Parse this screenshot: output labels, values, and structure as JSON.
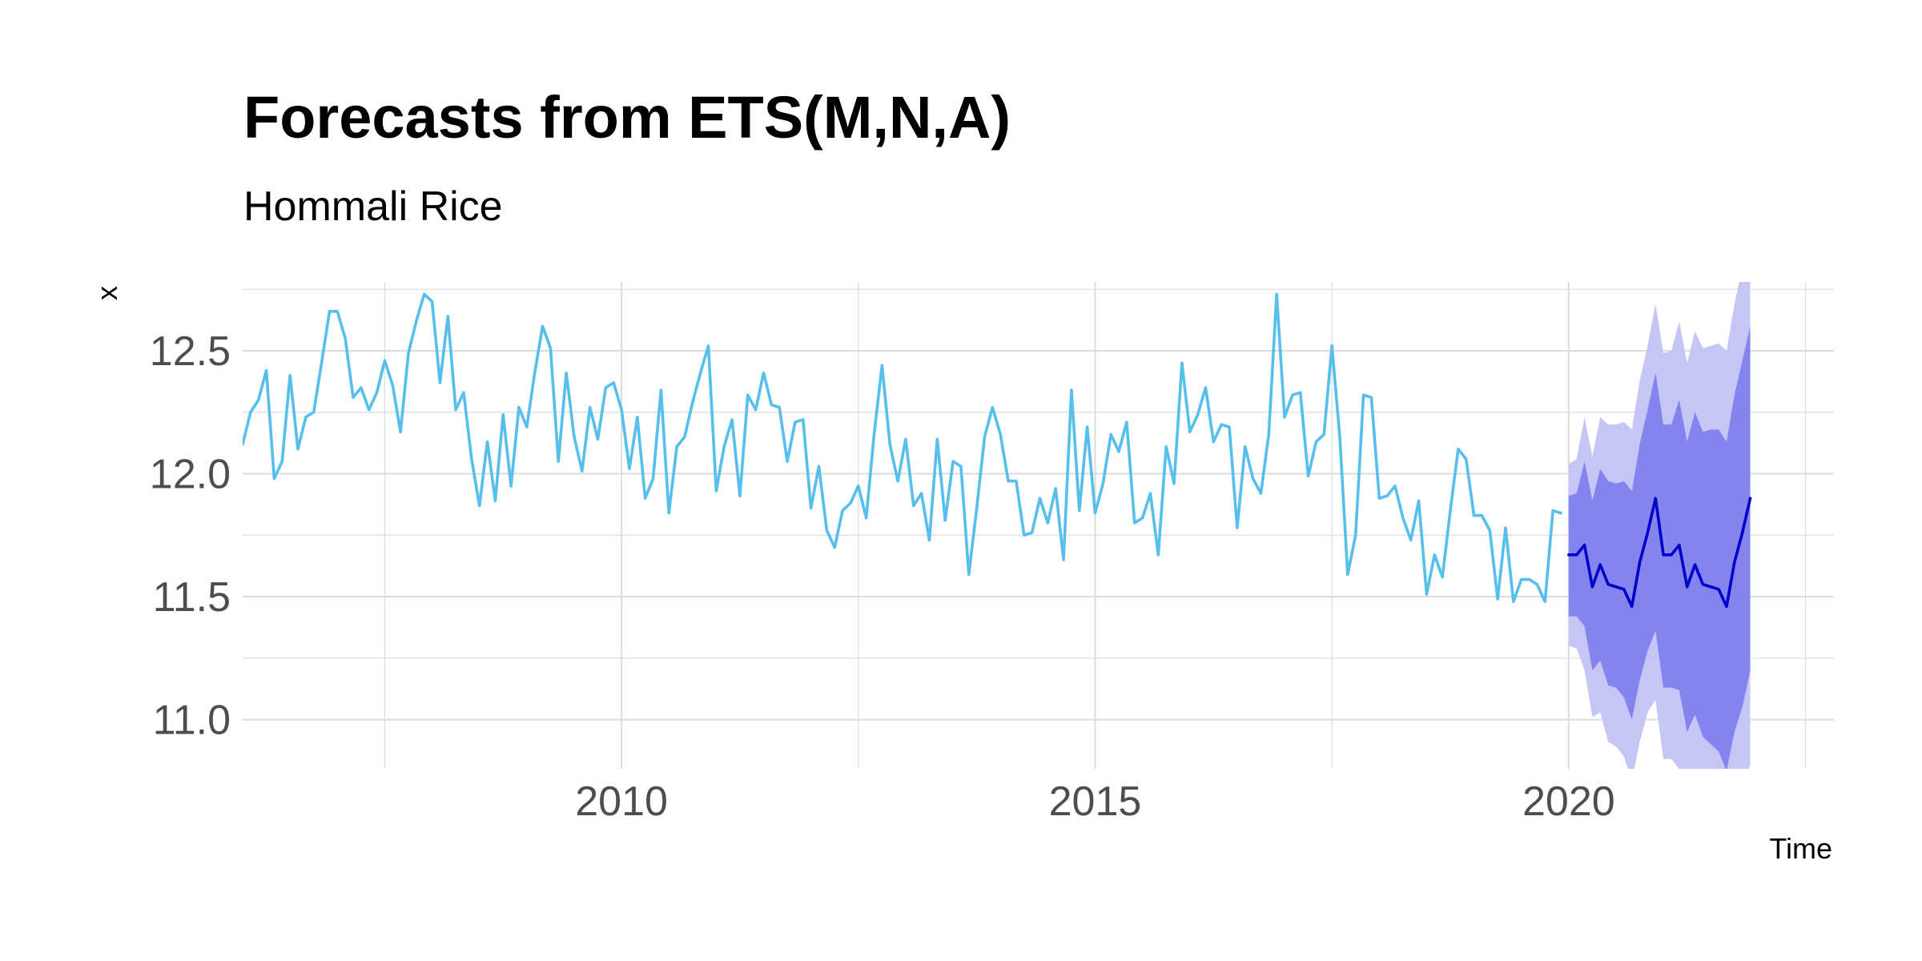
{
  "chart_data": {
    "type": "line",
    "title": "Forecasts from ETS(M,N,A)",
    "subtitle": "Hommali Rice",
    "xlabel": "Time",
    "ylabel": "x",
    "xlim": [
      2006.0,
      2022.8
    ],
    "ylim": [
      10.8,
      12.78
    ],
    "x_ticks": [
      2010,
      2015,
      2020
    ],
    "x_tick_labels": [
      "2010",
      "2015",
      "2020"
    ],
    "y_ticks": [
      11.0,
      11.5,
      12.0,
      12.5
    ],
    "y_tick_labels": [
      "11.0",
      "11.5",
      "12.0",
      "12.5"
    ],
    "grid": true,
    "legend": "none",
    "colors": {
      "history": "#56bfec",
      "forecast": "#0000cc",
      "pi80": "#8484ee",
      "pi95": "#c6c6f6",
      "grid": "#dcdcdc"
    },
    "history": {
      "name": "x",
      "start": [
        2006,
        1
      ],
      "frequency": 12,
      "values": [
        12.12,
        12.25,
        12.3,
        12.42,
        11.98,
        12.05,
        12.4,
        12.1,
        12.23,
        12.25,
        12.45,
        12.66,
        12.66,
        12.55,
        12.31,
        12.35,
        12.26,
        12.33,
        12.46,
        12.36,
        12.17,
        12.49,
        12.62,
        12.73,
        12.7,
        12.37,
        12.64,
        12.26,
        12.33,
        12.06,
        11.87,
        12.13,
        11.89,
        12.24,
        11.95,
        12.27,
        12.19,
        12.41,
        12.6,
        12.51,
        12.05,
        12.41,
        12.15,
        12.01,
        12.27,
        12.14,
        12.35,
        12.37,
        12.26,
        12.02,
        12.23,
        11.9,
        11.98,
        12.34,
        11.84,
        12.11,
        12.15,
        12.29,
        12.41,
        12.52,
        11.93,
        12.11,
        12.22,
        11.91,
        12.32,
        12.26,
        12.41,
        12.28,
        12.27,
        12.05,
        12.21,
        12.22,
        11.86,
        12.03,
        11.77,
        11.7,
        11.85,
        11.88,
        11.95,
        11.82,
        12.16,
        12.44,
        12.12,
        11.97,
        12.14,
        11.87,
        11.92,
        11.73,
        12.14,
        11.81,
        12.05,
        12.03,
        11.59,
        11.86,
        12.15,
        12.27,
        12.16,
        11.97,
        11.97,
        11.75,
        11.76,
        11.9,
        11.8,
        11.94,
        11.65,
        12.34,
        11.85,
        12.19,
        11.84,
        11.96,
        12.16,
        12.09,
        12.21,
        11.8,
        11.82,
        11.92,
        11.67,
        12.11,
        11.96,
        12.45,
        12.17,
        12.24,
        12.35,
        12.13,
        12.2,
        12.19,
        11.78,
        12.11,
        11.98,
        11.92,
        12.16,
        12.73,
        12.23,
        12.32,
        12.33,
        11.99,
        12.13,
        12.16,
        12.52,
        12.15,
        11.59,
        11.75,
        12.32,
        12.31,
        11.9,
        11.91,
        11.95,
        11.82,
        11.73,
        11.89,
        11.51,
        11.67,
        11.58,
        11.85,
        12.1,
        12.06,
        11.83,
        11.83,
        11.77,
        11.49,
        11.78,
        11.48,
        11.57,
        11.57,
        11.55,
        11.48,
        11.85,
        11.84
      ]
    },
    "forecast": {
      "name": "forecast",
      "start": [
        2020,
        1
      ],
      "frequency": 12,
      "mean": [
        11.67,
        11.67,
        11.71,
        11.54,
        11.63,
        11.55,
        11.54,
        11.53,
        11.46,
        11.64,
        11.76,
        11.9,
        11.67,
        11.67,
        11.71,
        11.54,
        11.63,
        11.55,
        11.54,
        11.53,
        11.46,
        11.64,
        11.76,
        11.9
      ],
      "lo80": [
        11.42,
        11.42,
        11.38,
        11.2,
        11.24,
        11.14,
        11.13,
        11.09,
        11.0,
        11.16,
        11.28,
        11.36,
        11.13,
        11.13,
        11.12,
        10.95,
        11.02,
        10.93,
        10.9,
        10.87,
        10.79,
        10.95,
        11.05,
        11.2
      ],
      "hi80": [
        11.91,
        11.92,
        12.05,
        11.89,
        12.02,
        11.97,
        11.96,
        11.97,
        11.93,
        12.12,
        12.26,
        12.41,
        12.2,
        12.2,
        12.3,
        12.13,
        12.25,
        12.17,
        12.18,
        12.18,
        12.13,
        12.32,
        12.46,
        12.6
      ],
      "lo95": [
        11.3,
        11.29,
        11.2,
        11.01,
        11.03,
        10.91,
        10.89,
        10.85,
        10.75,
        10.91,
        11.03,
        11.08,
        10.84,
        10.84,
        10.8,
        10.63,
        10.69,
        10.6,
        10.56,
        10.52,
        10.43,
        10.59,
        10.68,
        10.82
      ],
      "hi95": [
        12.04,
        12.06,
        12.23,
        12.07,
        12.23,
        12.2,
        12.2,
        12.21,
        12.18,
        12.38,
        12.52,
        12.69,
        12.49,
        12.5,
        12.62,
        12.45,
        12.58,
        12.51,
        12.52,
        12.53,
        12.5,
        12.69,
        12.84,
        12.98
      ]
    }
  }
}
